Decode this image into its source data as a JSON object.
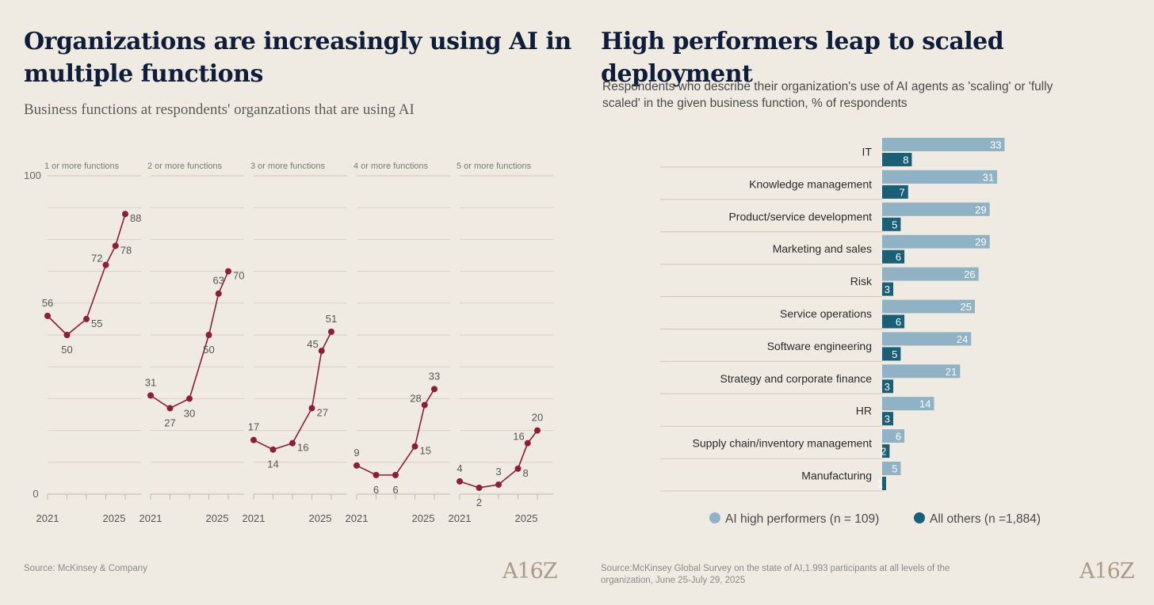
{
  "left": {
    "title_line1": "Organizations are increasingly using AI in",
    "title_line2": "multiple functions",
    "subtitle": "Business functions at respondents' organzations that are using AI",
    "source": "Source: McKinsey & Company",
    "logo": "A16Z"
  },
  "right": {
    "title": "High performers leap to scaled deployment",
    "subtitle": "Respondents who describe their organization's use of AI agents as 'scaling' or 'fully scaled' in the given business function, % of respondents",
    "source_line1": "Source:McKinsey Global Survey on the state of AI,1.993 participants at all levels of the",
    "source_line2": "organization, June 25-July 29, 2025",
    "logo": "A16Z"
  },
  "colors": {
    "line": "#8e1d37",
    "high": "#8fb3c4",
    "others": "#1a5f78",
    "grid": "#d9d2c2"
  },
  "chart_data": [
    {
      "type": "line",
      "title": "Business functions at respondents' organzations that are using AI",
      "ylim": [
        0,
        100
      ],
      "ytick_labels": [
        "100",
        "0"
      ],
      "x": [
        2021,
        2022,
        2023,
        2024,
        2024.5,
        2025
      ],
      "xtick_labels": [
        "2021",
        "2025"
      ],
      "grid": true,
      "panels": [
        {
          "label": "1 or more functions",
          "values": [
            56,
            50,
            55,
            72,
            78,
            88
          ],
          "label_pos": [
            "above",
            "below",
            "right",
            "left",
            "right",
            "right"
          ]
        },
        {
          "label": "2 or more functions",
          "values": [
            31,
            27,
            30,
            50,
            63,
            70
          ],
          "label_pos": [
            "above",
            "below",
            "below",
            "below",
            "above",
            "right"
          ]
        },
        {
          "label": "3 or more functions",
          "values": [
            17,
            14,
            16,
            27,
            45,
            51
          ],
          "label_pos": [
            "above",
            "below",
            "right",
            "right",
            "left",
            "above"
          ]
        },
        {
          "label": "4 or more functions",
          "values": [
            9,
            6,
            6,
            15,
            28,
            33
          ],
          "label_pos": [
            "above",
            "below",
            "below",
            "right",
            "left",
            "above"
          ]
        },
        {
          "label": "5 or more functions",
          "values": [
            4,
            2,
            3,
            8,
            16,
            20
          ],
          "label_pos": [
            "above",
            "below",
            "above",
            "right",
            "left",
            "above"
          ]
        }
      ]
    },
    {
      "type": "bar",
      "orientation": "horizontal",
      "title": "High performers leap to scaled deployment",
      "categories": [
        "IT",
        "Knowledge management",
        "Product/service development",
        "Marketing and sales",
        "Risk",
        "Service operations",
        "Software engineering",
        "Strategy and corporate finance",
        "HR",
        "Supply chain/inventory management",
        "Manufacturing"
      ],
      "series": [
        {
          "name": "AI high performers (n = 109)",
          "values": [
            33,
            31,
            29,
            29,
            26,
            25,
            24,
            21,
            14,
            6,
            5
          ]
        },
        {
          "name": "All others (n =1,884)",
          "values": [
            8,
            7,
            5,
            6,
            3,
            6,
            5,
            3,
            3,
            2,
            1
          ]
        }
      ],
      "legend": "bottom"
    }
  ]
}
